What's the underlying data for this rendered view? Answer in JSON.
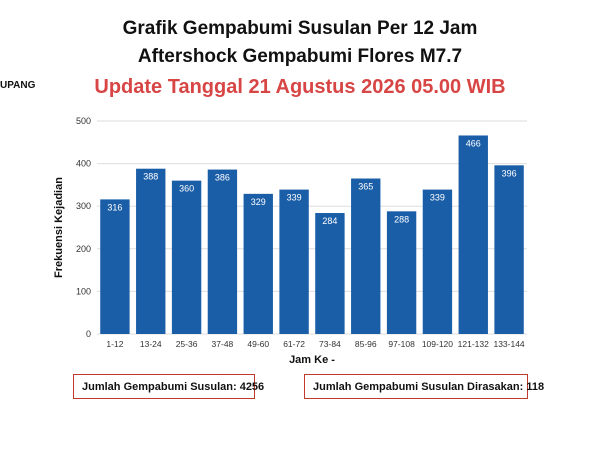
{
  "header": {
    "title_line1": "Grafik Gempabumi Susulan Per 12 Jam",
    "title_line2": "Aftershock Gempabumi Flores M7.7",
    "update_line": "Update Tanggal 21 Agustus 2026 05.00 WIB",
    "side_label": "UPANG"
  },
  "summary": {
    "total": "Jumlah Gempabumi Susulan: 4256",
    "felt": "Jumlah Gempabumi Susulan Dirasakan: 118"
  },
  "colors": {
    "bar": "#1b5ea8",
    "update_text": "#d84545",
    "box_border": "#c0392b"
  },
  "chart_data": {
    "type": "bar",
    "title": "Grafik Gempabumi Susulan Per 12 Jam",
    "xlabel": "Jam Ke -",
    "ylabel": "Frekuensi Kejadian",
    "categories": [
      "1-12",
      "13-24",
      "25-36",
      "37-48",
      "49-60",
      "61-72",
      "73-84",
      "85-96",
      "97-108",
      "109-120",
      "121-132",
      "133-144"
    ],
    "values": [
      316,
      388,
      360,
      386,
      329,
      339,
      284,
      365,
      288,
      339,
      466,
      396
    ],
    "ylim": [
      0,
      500
    ],
    "yticks": [
      0,
      100,
      200,
      300,
      400,
      500
    ],
    "grid": true,
    "legend": "none"
  }
}
